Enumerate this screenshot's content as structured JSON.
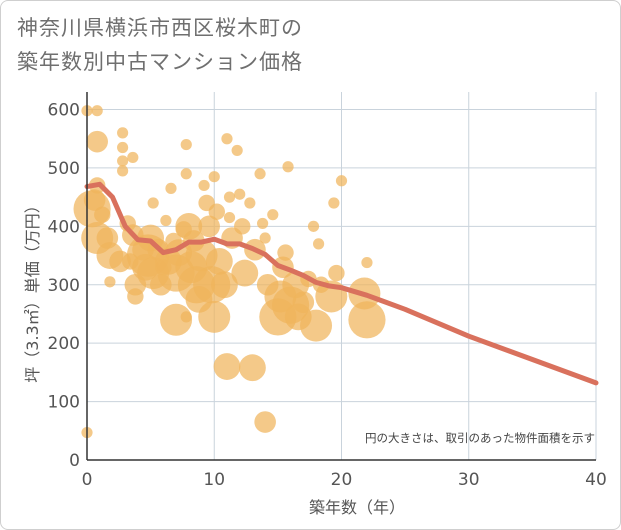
{
  "title_line1": "神奈川県横浜市西区桜木町の",
  "title_line2": "築年数別中古マンション価格",
  "colors": {
    "bubble": "#f0b45c",
    "trend": "#d9715d",
    "grid": "#c9d3dc",
    "axis": "#333333"
  },
  "chart_data": {
    "type": "scatter",
    "title": "神奈川県横浜市西区桜木町の築年数別中古マンション価格",
    "xlabel": "築年数（年）",
    "ylabel": "坪（3.3㎡）単価（万円）",
    "xlim": [
      0,
      40
    ],
    "ylim": [
      0,
      630
    ],
    "xticks": [
      0,
      10,
      20,
      30,
      40
    ],
    "yticks": [
      0,
      100,
      200,
      300,
      400,
      500,
      600
    ],
    "grid": true,
    "note": "円の大きさは、取引のあった物件面積を示す",
    "bubbles": [
      {
        "x": 0,
        "y": 598,
        "size": 1
      },
      {
        "x": 0.8,
        "y": 598,
        "size": 1
      },
      {
        "x": 0.8,
        "y": 545,
        "size": 3
      },
      {
        "x": 0.8,
        "y": 470,
        "size": 2
      },
      {
        "x": 0.6,
        "y": 445,
        "size": 3
      },
      {
        "x": 1.2,
        "y": 420,
        "size": 2
      },
      {
        "x": 0.4,
        "y": 430,
        "size": 6
      },
      {
        "x": 0.8,
        "y": 380,
        "size": 5
      },
      {
        "x": 1.6,
        "y": 380,
        "size": 3
      },
      {
        "x": 1.8,
        "y": 350,
        "size": 4
      },
      {
        "x": 1.8,
        "y": 305,
        "size": 1
      },
      {
        "x": 2.6,
        "y": 340,
        "size": 3
      },
      {
        "x": 0,
        "y": 47,
        "size": 1
      },
      {
        "x": 2.8,
        "y": 560,
        "size": 1
      },
      {
        "x": 2.8,
        "y": 535,
        "size": 1
      },
      {
        "x": 2.8,
        "y": 512,
        "size": 1
      },
      {
        "x": 2.8,
        "y": 495,
        "size": 1
      },
      {
        "x": 3.6,
        "y": 518,
        "size": 1
      },
      {
        "x": 3.2,
        "y": 405,
        "size": 2
      },
      {
        "x": 3.6,
        "y": 385,
        "size": 3
      },
      {
        "x": 3.4,
        "y": 340,
        "size": 2
      },
      {
        "x": 3.8,
        "y": 300,
        "size": 3
      },
      {
        "x": 3.8,
        "y": 280,
        "size": 2
      },
      {
        "x": 4.4,
        "y": 360,
        "size": 3
      },
      {
        "x": 4.6,
        "y": 330,
        "size": 4
      },
      {
        "x": 4.8,
        "y": 350,
        "size": 7
      },
      {
        "x": 5.2,
        "y": 320,
        "size": 5
      },
      {
        "x": 5.0,
        "y": 380,
        "size": 4
      },
      {
        "x": 5.2,
        "y": 440,
        "size": 1
      },
      {
        "x": 5.6,
        "y": 360,
        "size": 3
      },
      {
        "x": 5.8,
        "y": 300,
        "size": 3
      },
      {
        "x": 6.0,
        "y": 330,
        "size": 2
      },
      {
        "x": 6.2,
        "y": 410,
        "size": 1
      },
      {
        "x": 6.4,
        "y": 340,
        "size": 4
      },
      {
        "x": 6.6,
        "y": 465,
        "size": 1
      },
      {
        "x": 6.8,
        "y": 375,
        "size": 2
      },
      {
        "x": 7.0,
        "y": 240,
        "size": 5
      },
      {
        "x": 7.0,
        "y": 320,
        "size": 6
      },
      {
        "x": 7.2,
        "y": 355,
        "size": 4
      },
      {
        "x": 7.6,
        "y": 395,
        "size": 2
      },
      {
        "x": 7.8,
        "y": 540,
        "size": 1
      },
      {
        "x": 7.8,
        "y": 490,
        "size": 1
      },
      {
        "x": 7.8,
        "y": 245,
        "size": 1
      },
      {
        "x": 8.0,
        "y": 400,
        "size": 4
      },
      {
        "x": 8.2,
        "y": 330,
        "size": 5
      },
      {
        "x": 8.4,
        "y": 375,
        "size": 3
      },
      {
        "x": 8.6,
        "y": 300,
        "size": 6
      },
      {
        "x": 8.8,
        "y": 275,
        "size": 4
      },
      {
        "x": 9.0,
        "y": 350,
        "size": 5
      },
      {
        "x": 9.2,
        "y": 470,
        "size": 1
      },
      {
        "x": 9.4,
        "y": 440,
        "size": 2
      },
      {
        "x": 9.6,
        "y": 400,
        "size": 3
      },
      {
        "x": 9.8,
        "y": 300,
        "size": 6
      },
      {
        "x": 10.0,
        "y": 245,
        "size": 5
      },
      {
        "x": 10.0,
        "y": 485,
        "size": 1
      },
      {
        "x": 10.2,
        "y": 425,
        "size": 2
      },
      {
        "x": 10.4,
        "y": 340,
        "size": 4
      },
      {
        "x": 10.8,
        "y": 300,
        "size": 4
      },
      {
        "x": 11.0,
        "y": 160,
        "size": 4
      },
      {
        "x": 11.0,
        "y": 550,
        "size": 1
      },
      {
        "x": 11.2,
        "y": 450,
        "size": 1
      },
      {
        "x": 11.2,
        "y": 415,
        "size": 1
      },
      {
        "x": 11.4,
        "y": 380,
        "size": 3
      },
      {
        "x": 11.8,
        "y": 530,
        "size": 1
      },
      {
        "x": 12.0,
        "y": 455,
        "size": 1
      },
      {
        "x": 12.2,
        "y": 400,
        "size": 2
      },
      {
        "x": 12.4,
        "y": 320,
        "size": 4
      },
      {
        "x": 12.8,
        "y": 440,
        "size": 1
      },
      {
        "x": 13.0,
        "y": 158,
        "size": 4
      },
      {
        "x": 13.2,
        "y": 360,
        "size": 3
      },
      {
        "x": 13.6,
        "y": 490,
        "size": 1
      },
      {
        "x": 13.8,
        "y": 405,
        "size": 1
      },
      {
        "x": 14.0,
        "y": 65,
        "size": 3
      },
      {
        "x": 14.0,
        "y": 380,
        "size": 1
      },
      {
        "x": 14.2,
        "y": 300,
        "size": 3
      },
      {
        "x": 14.6,
        "y": 420,
        "size": 1
      },
      {
        "x": 15.0,
        "y": 245,
        "size": 6
      },
      {
        "x": 15.2,
        "y": 280,
        "size": 5
      },
      {
        "x": 15.4,
        "y": 330,
        "size": 3
      },
      {
        "x": 15.6,
        "y": 355,
        "size": 2
      },
      {
        "x": 15.8,
        "y": 502,
        "size": 1
      },
      {
        "x": 16.0,
        "y": 265,
        "size": 6
      },
      {
        "x": 16.4,
        "y": 300,
        "size": 4
      },
      {
        "x": 16.6,
        "y": 245,
        "size": 4
      },
      {
        "x": 17.0,
        "y": 270,
        "size": 3
      },
      {
        "x": 17.4,
        "y": 310,
        "size": 2
      },
      {
        "x": 17.8,
        "y": 400,
        "size": 1
      },
      {
        "x": 18.0,
        "y": 230,
        "size": 5
      },
      {
        "x": 18.2,
        "y": 370,
        "size": 1
      },
      {
        "x": 18.4,
        "y": 300,
        "size": 2
      },
      {
        "x": 19.2,
        "y": 280,
        "size": 5
      },
      {
        "x": 19.4,
        "y": 440,
        "size": 1
      },
      {
        "x": 19.6,
        "y": 320,
        "size": 2
      },
      {
        "x": 20.0,
        "y": 478,
        "size": 1
      },
      {
        "x": 21.8,
        "y": 285,
        "size": 5
      },
      {
        "x": 22.0,
        "y": 240,
        "size": 6
      },
      {
        "x": 22.0,
        "y": 338,
        "size": 1
      }
    ],
    "trend": {
      "x": [
        0,
        1,
        2,
        3,
        4,
        5,
        6,
        7,
        8,
        9,
        10,
        11,
        12,
        13,
        14,
        15,
        16,
        17,
        18,
        19,
        20,
        22,
        25,
        30,
        35,
        40
      ],
      "y": [
        468,
        472,
        450,
        400,
        377,
        375,
        355,
        360,
        373,
        373,
        378,
        370,
        370,
        362,
        352,
        333,
        325,
        316,
        304,
        298,
        295,
        282,
        258,
        212,
        172,
        132
      ]
    }
  }
}
